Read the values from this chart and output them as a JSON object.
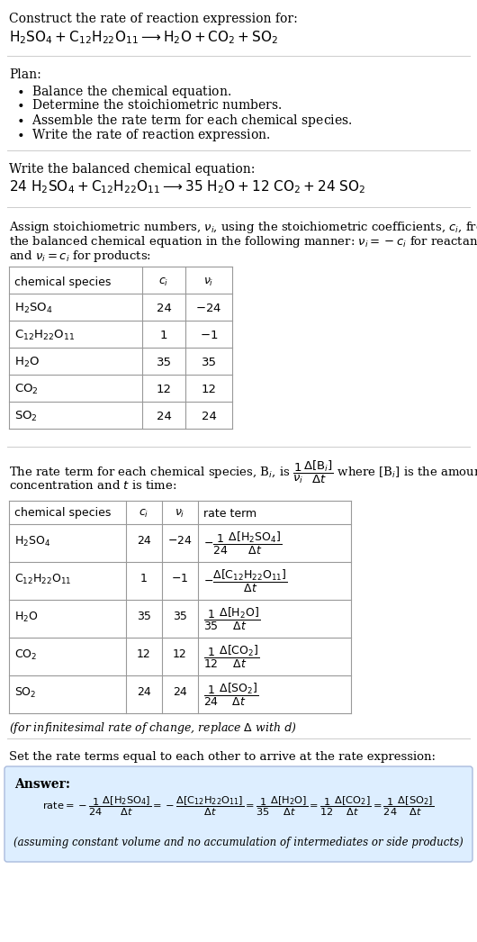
{
  "bg_color": "#ffffff",
  "text_color": "#000000",
  "table_border_color": "#999999",
  "divider_color": "#cccccc",
  "answer_bg": "#ddeeff",
  "answer_border": "#aabbdd",
  "sections": {
    "header": {
      "line1": "Construct the rate of reaction expression for:",
      "line2_math": "$\\mathrm{H_2SO_4 + C_{12}H_{22}O_{11} \\longrightarrow H_2O + CO_2 + SO_2}$"
    },
    "plan": {
      "header": "Plan:",
      "items": [
        "\\bullet  Balance the chemical equation.",
        "\\bullet  Determine the stoichiometric numbers.",
        "\\bullet  Assemble the rate term for each chemical species.",
        "\\bullet  Write the rate of reaction expression."
      ]
    },
    "balanced": {
      "header": "Write the balanced chemical equation:",
      "eq_math": "$\\mathrm{24\\ H_2SO_4 + C_{12}H_{22}O_{11} \\longrightarrow 35\\ H_2O + 12\\ CO_2 + 24\\ SO_2}$"
    },
    "stoich_intro": [
      "Assign stoichiometric numbers, $\\nu_i$, using the stoichiometric coefficients, $c_i$, from",
      "the balanced chemical equation in the following manner: $\\nu_i = -c_i$ for reactants",
      "and $\\nu_i = c_i$ for products:"
    ],
    "table1": {
      "col_headers": [
        "chemical species",
        "$c_i$",
        "$\\nu_i$"
      ],
      "rows": [
        [
          "$\\mathrm{H_2SO_4}$",
          "24",
          "$-24$"
        ],
        [
          "$\\mathrm{C_{12}H_{22}O_{11}}$",
          "1",
          "$-1$"
        ],
        [
          "$\\mathrm{H_2O}$",
          "35",
          "35"
        ],
        [
          "$\\mathrm{CO_2}$",
          "12",
          "12"
        ],
        [
          "$\\mathrm{SO_2}$",
          "24",
          "24"
        ]
      ]
    },
    "rate_intro": [
      "The rate term for each chemical species, B$_i$, is $\\dfrac{1}{\\nu_i}\\dfrac{\\Delta[\\mathrm{B}_i]}{\\Delta t}$ where [B$_i$] is the amount",
      "concentration and $t$ is time:"
    ],
    "table2": {
      "col_headers": [
        "chemical species",
        "$c_i$",
        "$\\nu_i$",
        "rate term"
      ],
      "rows": [
        [
          "$\\mathrm{H_2SO_4}$",
          "24",
          "$-24$",
          "$-\\dfrac{1}{24}\\dfrac{\\Delta[\\mathrm{H_2SO_4}]}{\\Delta t}$"
        ],
        [
          "$\\mathrm{C_{12}H_{22}O_{11}}$",
          "1",
          "$-1$",
          "$-\\dfrac{\\Delta[\\mathrm{C_{12}H_{22}O_{11}}]}{\\Delta t}$"
        ],
        [
          "$\\mathrm{H_2O}$",
          "35",
          "35",
          "$\\dfrac{1}{35}\\dfrac{\\Delta[\\mathrm{H_2O}]}{\\Delta t}$"
        ],
        [
          "$\\mathrm{CO_2}$",
          "12",
          "12",
          "$\\dfrac{1}{12}\\dfrac{\\Delta[\\mathrm{CO_2}]}{\\Delta t}$"
        ],
        [
          "$\\mathrm{SO_2}$",
          "24",
          "24",
          "$\\dfrac{1}{24}\\dfrac{\\Delta[\\mathrm{SO_2}]}{\\Delta t}$"
        ]
      ]
    },
    "infinitesimal_note": "(for infinitesimal rate of change, replace $\\Delta$ with $d$)",
    "set_rate_text": "Set the rate terms equal to each other to arrive at the rate expression:",
    "answer_label": "Answer:",
    "rate_expression": "$\\mathrm{rate} = -\\dfrac{1}{24}\\dfrac{\\Delta[\\mathrm{H_2SO_4}]}{\\Delta t} = -\\dfrac{\\Delta[\\mathrm{C_{12}H_{22}O_{11}}]}{\\Delta t} = \\dfrac{1}{35}\\dfrac{\\Delta[\\mathrm{H_2O}]}{\\Delta t} = \\dfrac{1}{12}\\dfrac{\\Delta[\\mathrm{CO_2}]}{\\Delta t} = \\dfrac{1}{24}\\dfrac{\\Delta[\\mathrm{SO_2}]}{\\Delta t}$",
    "assuming_note": "(assuming constant volume and no accumulation of intermediates or side products)"
  }
}
